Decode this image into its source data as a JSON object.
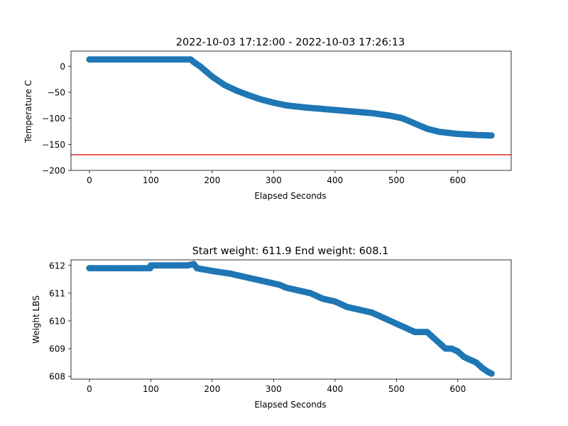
{
  "chart_data": [
    {
      "type": "scatter",
      "title": "2022-10-03 17:12:00 - 2022-10-03 17:26:13",
      "xlabel": "Elapsed Seconds",
      "ylabel": "Temperature C",
      "xlim": [
        -30,
        687
      ],
      "ylim": [
        -200,
        29
      ],
      "xticks": [
        0,
        100,
        200,
        300,
        400,
        500,
        600
      ],
      "yticks": [
        0,
        -50,
        -100,
        -150,
        -200
      ],
      "yticklabels": [
        "0",
        "−50",
        "−100",
        "−150",
        "−200"
      ],
      "reference_line": {
        "y": -170,
        "color": "#d62728"
      },
      "marker_color": "#1f77b4",
      "series": [
        {
          "x": [
            0,
            20,
            50,
            100,
            140,
            165,
            170,
            180,
            190,
            200,
            210,
            220,
            240,
            260,
            280,
            300,
            320,
            350,
            380,
            400,
            430,
            460,
            490,
            510,
            530,
            550,
            570,
            600,
            630,
            655
          ],
          "y": [
            13,
            13,
            13,
            13,
            13,
            13,
            8,
            0,
            -10,
            -20,
            -28,
            -36,
            -47,
            -56,
            -64,
            -70,
            -75,
            -79,
            -82,
            -84,
            -87,
            -90,
            -95,
            -100,
            -110,
            -120,
            -126,
            -130,
            -132,
            -133
          ]
        }
      ]
    },
    {
      "type": "scatter",
      "title": "Start weight: 611.9 End weight: 608.1",
      "xlabel": "Elapsed Seconds",
      "ylabel": "Weight LBS",
      "xlim": [
        -30,
        687
      ],
      "ylim": [
        607.9,
        612.2
      ],
      "xticks": [
        0,
        100,
        200,
        300,
        400,
        500,
        600
      ],
      "yticks": [
        608,
        609,
        610,
        611,
        612
      ],
      "marker_color": "#1f77b4",
      "series": [
        {
          "x": [
            0,
            50,
            99,
            100,
            130,
            160,
            170,
            175,
            200,
            230,
            250,
            270,
            290,
            310,
            320,
            340,
            360,
            380,
            400,
            420,
            440,
            460,
            480,
            490,
            500,
            510,
            520,
            530,
            550,
            560,
            570,
            580,
            590,
            600,
            610,
            620,
            630,
            640,
            650,
            655
          ],
          "y": [
            611.9,
            611.9,
            611.9,
            612.0,
            612.0,
            612.0,
            612.05,
            611.9,
            611.8,
            611.7,
            611.6,
            611.5,
            611.4,
            611.3,
            611.2,
            611.1,
            611.0,
            610.8,
            610.7,
            610.5,
            610.4,
            610.3,
            610.1,
            610.0,
            609.9,
            609.8,
            609.7,
            609.6,
            609.6,
            609.4,
            609.2,
            609.0,
            609.0,
            608.9,
            608.7,
            608.6,
            608.5,
            608.3,
            608.15,
            608.1
          ]
        }
      ]
    }
  ]
}
